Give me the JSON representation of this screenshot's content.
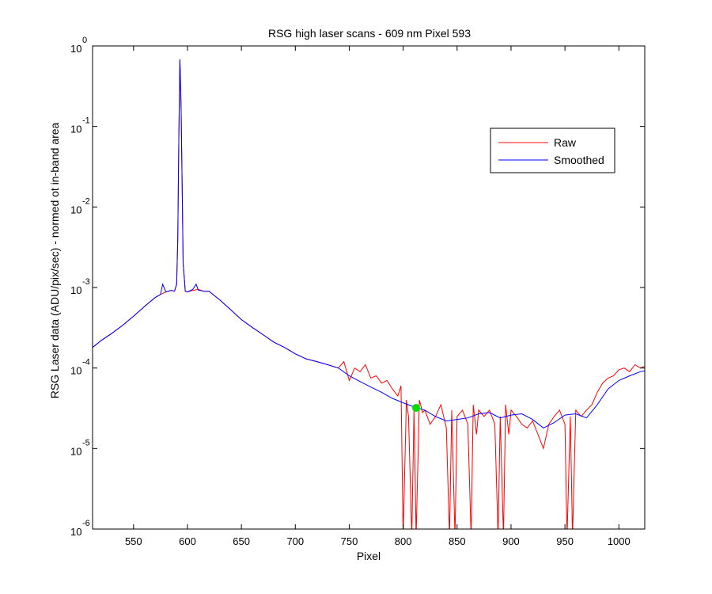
{
  "chart_data": {
    "type": "line",
    "title": "RSG high laser scans  - 609 nm    Pixel 593",
    "xlabel": "Pixel",
    "ylabel": "RSG Laser data (ADU/pix/sec) - normed ot in-band area",
    "xlim": [
      512,
      1024
    ],
    "ylim": [
      1e-06,
      1
    ],
    "yscale": "log",
    "grid": false,
    "legend_position": "top-right",
    "x_ticks": [
      550,
      600,
      650,
      700,
      750,
      800,
      850,
      900,
      950,
      1000
    ],
    "y_ticks": [
      {
        "value": 1e-06,
        "base": "10",
        "exp": "-6"
      },
      {
        "value": 1e-05,
        "base": "10",
        "exp": "-5"
      },
      {
        "value": 0.0001,
        "base": "10",
        "exp": "-4"
      },
      {
        "value": 0.001,
        "base": "10",
        "exp": "-3"
      },
      {
        "value": 0.01,
        "base": "10",
        "exp": "-2"
      },
      {
        "value": 0.1,
        "base": "10",
        "exp": "-1"
      },
      {
        "value": 1,
        "base": "10",
        "exp": "0"
      }
    ],
    "series": [
      {
        "name": "Raw",
        "color": "#ff0000",
        "x": [
          512,
          520,
          530,
          540,
          550,
          560,
          570,
          575,
          580,
          585,
          588,
          590,
          591,
          592,
          593,
          594,
          595,
          596,
          598,
          600,
          605,
          610,
          615,
          620,
          630,
          640,
          650,
          660,
          670,
          680,
          690,
          700,
          710,
          720,
          730,
          740,
          745,
          750,
          755,
          760,
          765,
          770,
          775,
          780,
          785,
          790,
          795,
          798,
          800,
          803,
          805,
          808,
          810,
          812,
          815,
          818,
          820,
          825,
          830,
          835,
          840,
          843,
          845,
          848,
          850,
          855,
          860,
          863,
          865,
          868,
          870,
          875,
          880,
          885,
          888,
          890,
          893,
          895,
          898,
          900,
          905,
          910,
          915,
          920,
          925,
          930,
          935,
          940,
          945,
          950,
          952,
          955,
          957,
          960,
          965,
          970,
          975,
          980,
          985,
          990,
          995,
          1000,
          1005,
          1010,
          1015,
          1020,
          1024
        ],
        "y": [
          0.00018,
          0.00022,
          0.00027,
          0.00034,
          0.00044,
          0.00058,
          0.00075,
          0.00082,
          0.00088,
          0.00092,
          0.0009,
          0.0011,
          0.004,
          0.08,
          0.68,
          0.2,
          0.02,
          0.002,
          0.0009,
          0.00088,
          0.00092,
          0.00095,
          0.0009,
          0.0009,
          0.0007,
          0.00053,
          0.0004,
          0.00032,
          0.00026,
          0.00021,
          0.00018,
          0.00015,
          0.00013,
          0.00012,
          0.00011,
          0.0001,
          0.00012,
          7e-05,
          0.0001,
          9e-05,
          0.00011,
          7.5e-05,
          8e-05,
          6.5e-05,
          7e-05,
          5.5e-05,
          4.5e-05,
          6e-05,
          8e-07,
          4e-05,
          2.5e-05,
          8e-07,
          3e-05,
          8e-07,
          4e-05,
          2.8e-05,
          3e-05,
          2e-05,
          2.5e-05,
          3.5e-05,
          1.8e-05,
          8e-07,
          3e-05,
          8e-07,
          2.5e-05,
          3e-05,
          2e-05,
          8e-07,
          3.5e-05,
          1.5e-05,
          3e-05,
          2.5e-05,
          3e-05,
          2e-05,
          8e-07,
          2.5e-05,
          8e-07,
          3.5e-05,
          1.5e-05,
          3e-05,
          2.5e-05,
          2e-05,
          1.8e-05,
          2.2e-05,
          1.5e-05,
          1e-05,
          2e-05,
          2.5e-05,
          3e-05,
          2e-05,
          8e-07,
          2.5e-05,
          8e-07,
          3e-05,
          2.5e-05,
          3e-05,
          3.5e-05,
          5e-05,
          6.5e-05,
          7.5e-05,
          8e-05,
          9.5e-05,
          0.0001,
          9e-05,
          0.00011,
          0.0001,
          0.000105
        ]
      },
      {
        "name": "Smoothed",
        "color": "#0000ff",
        "x": [
          512,
          520,
          530,
          540,
          550,
          560,
          570,
          575,
          577,
          580,
          585,
          588,
          590,
          591,
          592,
          593,
          594,
          595,
          596,
          598,
          600,
          605,
          608,
          610,
          615,
          620,
          630,
          640,
          650,
          660,
          670,
          680,
          690,
          700,
          710,
          720,
          730,
          740,
          750,
          760,
          770,
          780,
          790,
          800,
          810,
          820,
          830,
          840,
          850,
          860,
          870,
          880,
          890,
          900,
          910,
          920,
          930,
          940,
          950,
          960,
          970,
          980,
          990,
          1000,
          1010,
          1020,
          1024
        ],
        "y": [
          0.00018,
          0.00022,
          0.00027,
          0.00034,
          0.00044,
          0.00058,
          0.00075,
          0.00082,
          0.0011,
          0.00088,
          0.00092,
          0.0009,
          0.0011,
          0.004,
          0.08,
          0.68,
          0.2,
          0.02,
          0.002,
          0.0009,
          0.00088,
          0.00095,
          0.0011,
          0.00093,
          0.0009,
          0.0009,
          0.0007,
          0.00053,
          0.0004,
          0.00032,
          0.00026,
          0.00021,
          0.00018,
          0.00015,
          0.00013,
          0.00012,
          0.00011,
          0.0001,
          8e-05,
          6.8e-05,
          5.8e-05,
          5e-05,
          4.2e-05,
          3.7e-05,
          3.3e-05,
          3e-05,
          2.5e-05,
          2.2e-05,
          2.3e-05,
          2.4e-05,
          2.7e-05,
          2.8e-05,
          2.4e-05,
          2.6e-05,
          2.7e-05,
          2.3e-05,
          1.8e-05,
          2.1e-05,
          2.6e-05,
          2.7e-05,
          2.4e-05,
          3.5e-05,
          5.5e-05,
          7e-05,
          8e-05,
          9e-05,
          9.2e-05
        ]
      }
    ],
    "marker": {
      "x": 812,
      "y": 3.2e-05,
      "color": "#00dd00"
    }
  }
}
